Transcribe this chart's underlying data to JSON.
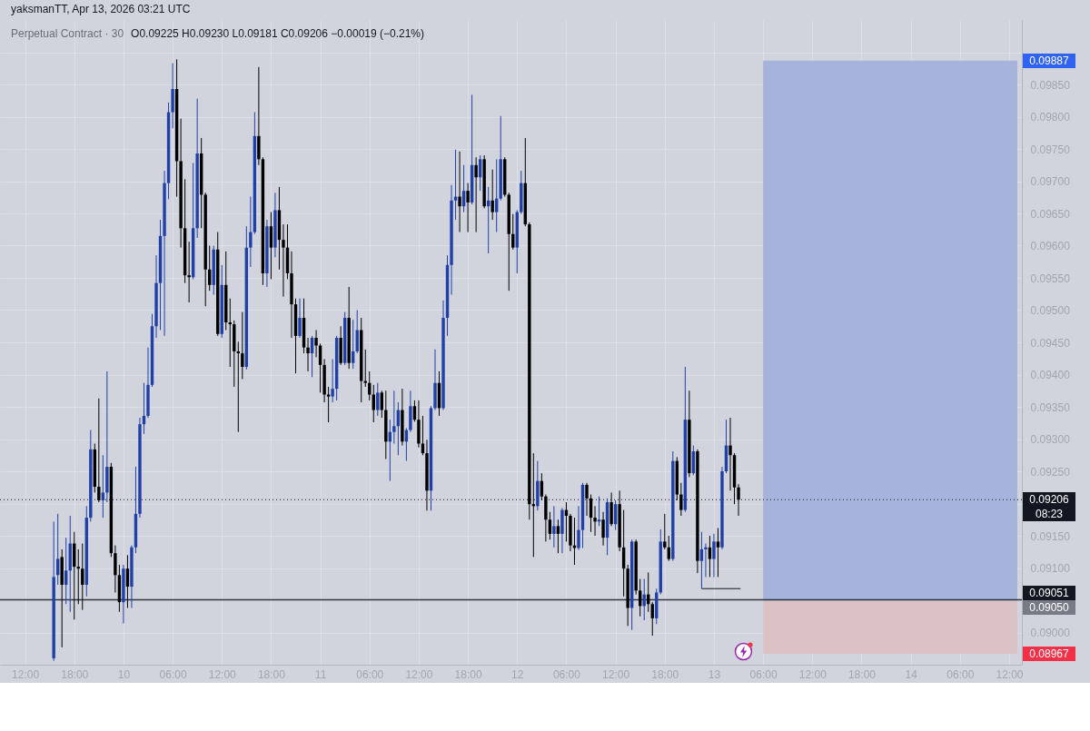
{
  "chart_data": {
    "type": "candlestick",
    "title": "Perpetual Contract · 30",
    "annotations": [
      "yaksmanTT, Apr 13, 2026 03:21 UTC",
      "O0.09225 H0.09230 L0.09181 C0.09206 −0.00019 (−0.21%)",
      "08:23"
    ],
    "x": [
      "2026-04-09T15:30",
      "2026-04-09T16:00",
      "2026-04-09T16:30",
      "2026-04-09T17:00",
      "2026-04-09T17:30",
      "2026-04-09T18:00",
      "2026-04-09T18:30",
      "2026-04-09T19:00",
      "2026-04-09T19:30",
      "2026-04-09T20:00",
      "2026-04-09T20:30",
      "2026-04-09T21:00",
      "2026-04-09T21:30",
      "2026-04-09T22:00",
      "2026-04-09T22:30",
      "2026-04-09T23:00",
      "2026-04-09T23:30",
      "2026-04-10T00:00",
      "2026-04-10T00:30",
      "2026-04-10T01:00",
      "2026-04-10T01:30",
      "2026-04-10T02:00",
      "2026-04-10T02:30",
      "2026-04-10T03:00",
      "2026-04-10T03:30",
      "2026-04-10T04:00",
      "2026-04-10T04:30",
      "2026-04-10T05:00",
      "2026-04-10T05:30",
      "2026-04-10T06:00",
      "2026-04-10T06:30",
      "2026-04-10T07:00",
      "2026-04-10T07:30",
      "2026-04-10T08:00",
      "2026-04-10T08:30",
      "2026-04-10T09:00",
      "2026-04-10T09:30",
      "2026-04-10T10:00",
      "2026-04-10T10:30",
      "2026-04-10T11:00",
      "2026-04-10T11:30",
      "2026-04-10T12:00",
      "2026-04-10T12:30",
      "2026-04-10T13:00",
      "2026-04-10T13:30",
      "2026-04-10T14:00",
      "2026-04-10T14:30",
      "2026-04-10T15:00",
      "2026-04-10T15:30",
      "2026-04-10T16:00",
      "2026-04-10T16:30",
      "2026-04-10T17:00",
      "2026-04-10T17:30",
      "2026-04-10T18:00",
      "2026-04-10T18:30",
      "2026-04-10T19:00",
      "2026-04-10T19:30",
      "2026-04-10T20:00",
      "2026-04-10T20:30",
      "2026-04-10T21:00",
      "2026-04-10T21:30",
      "2026-04-10T22:00",
      "2026-04-10T22:30",
      "2026-04-10T23:00",
      "2026-04-10T23:30",
      "2026-04-11T00:00",
      "2026-04-11T00:30",
      "2026-04-11T01:00",
      "2026-04-11T01:30",
      "2026-04-11T02:00",
      "2026-04-11T02:30",
      "2026-04-11T03:00",
      "2026-04-11T03:30",
      "2026-04-11T04:00",
      "2026-04-11T04:30",
      "2026-04-11T05:00",
      "2026-04-11T05:30",
      "2026-04-11T06:00",
      "2026-04-11T06:30",
      "2026-04-11T07:00",
      "2026-04-11T07:30",
      "2026-04-11T08:00",
      "2026-04-11T08:30",
      "2026-04-11T09:00",
      "2026-04-11T09:30",
      "2026-04-11T10:00",
      "2026-04-11T10:30",
      "2026-04-11T11:00",
      "2026-04-11T11:30",
      "2026-04-11T12:00",
      "2026-04-11T12:30",
      "2026-04-11T13:00",
      "2026-04-11T13:30",
      "2026-04-11T14:00",
      "2026-04-11T14:30",
      "2026-04-11T15:00",
      "2026-04-11T15:30",
      "2026-04-11T16:00",
      "2026-04-11T16:30",
      "2026-04-11T17:00",
      "2026-04-11T17:30",
      "2026-04-11T18:00",
      "2026-04-11T18:30",
      "2026-04-11T19:00",
      "2026-04-11T19:30",
      "2026-04-11T20:00",
      "2026-04-11T20:30",
      "2026-04-11T21:00",
      "2026-04-11T21:30",
      "2026-04-11T22:00",
      "2026-04-11T22:30",
      "2026-04-11T23:00",
      "2026-04-11T23:30",
      "2026-04-12T00:00",
      "2026-04-12T00:30",
      "2026-04-12T01:00",
      "2026-04-12T01:30",
      "2026-04-12T02:00",
      "2026-04-12T02:30",
      "2026-04-12T03:00",
      "2026-04-12T03:30",
      "2026-04-12T04:00",
      "2026-04-12T04:30",
      "2026-04-12T05:00",
      "2026-04-12T05:30",
      "2026-04-12T06:00",
      "2026-04-12T06:30",
      "2026-04-12T07:00",
      "2026-04-12T07:30",
      "2026-04-12T08:00",
      "2026-04-12T08:30",
      "2026-04-12T09:00",
      "2026-04-12T09:30",
      "2026-04-12T10:00",
      "2026-04-12T10:30",
      "2026-04-12T11:00",
      "2026-04-12T11:30",
      "2026-04-12T12:00",
      "2026-04-12T12:30",
      "2026-04-12T13:00",
      "2026-04-12T13:30",
      "2026-04-12T14:00",
      "2026-04-12T14:30",
      "2026-04-12T15:00",
      "2026-04-12T15:30",
      "2026-04-12T16:00",
      "2026-04-12T16:30",
      "2026-04-12T17:00",
      "2026-04-12T17:30",
      "2026-04-12T18:00",
      "2026-04-12T18:30",
      "2026-04-12T19:00",
      "2026-04-12T19:30",
      "2026-04-12T20:00",
      "2026-04-12T20:30",
      "2026-04-12T21:00",
      "2026-04-12T21:30",
      "2026-04-12T22:00",
      "2026-04-12T22:30",
      "2026-04-12T23:00",
      "2026-04-12T23:30",
      "2026-04-13T00:00",
      "2026-04-13T00:30",
      "2026-04-13T01:00",
      "2026-04-13T01:30",
      "2026-04-13T02:00",
      "2026-04-13T02:30",
      "2026-04-13T03:00"
    ],
    "ohlc": [
      [
        0.0896,
        0.09172,
        0.08956,
        0.09086
      ],
      [
        0.09089,
        0.09184,
        0.09074,
        0.09114
      ],
      [
        0.09117,
        0.09129,
        0.08977,
        0.09074
      ],
      [
        0.09074,
        0.09147,
        0.09044,
        0.09096
      ],
      [
        0.09096,
        0.09181,
        0.09032,
        0.09138
      ],
      [
        0.09138,
        0.09156,
        0.0902,
        0.09102
      ],
      [
        0.09102,
        0.09129,
        0.09044,
        0.09099
      ],
      [
        0.09099,
        0.09138,
        0.09035,
        0.09074
      ],
      [
        0.09074,
        0.09196,
        0.09056,
        0.09178
      ],
      [
        0.09178,
        0.09314,
        0.09172,
        0.09284
      ],
      [
        0.09284,
        0.09293,
        0.09217,
        0.09226
      ],
      [
        0.09226,
        0.09363,
        0.09202,
        0.09205
      ],
      [
        0.09205,
        0.09275,
        0.09178,
        0.09217
      ],
      [
        0.09217,
        0.09405,
        0.09202,
        0.09257
      ],
      [
        0.09257,
        0.09263,
        0.09117,
        0.09123
      ],
      [
        0.09123,
        0.09135,
        0.09062,
        0.09089
      ],
      [
        0.09089,
        0.09105,
        0.09032,
        0.09047
      ],
      [
        0.09047,
        0.09105,
        0.09014,
        0.09099
      ],
      [
        0.09099,
        0.0912,
        0.09038,
        0.09071
      ],
      [
        0.09071,
        0.09135,
        0.09038,
        0.09132
      ],
      [
        0.09132,
        0.09257,
        0.09123,
        0.09184
      ],
      [
        0.09184,
        0.09333,
        0.09178,
        0.09323
      ],
      [
        0.09323,
        0.09387,
        0.09308,
        0.09336
      ],
      [
        0.09336,
        0.09442,
        0.09333,
        0.09384
      ],
      [
        0.09384,
        0.09494,
        0.09381,
        0.09475
      ],
      [
        0.09475,
        0.09585,
        0.09457,
        0.09542
      ],
      [
        0.09542,
        0.0964,
        0.09469,
        0.09615
      ],
      [
        0.09615,
        0.09716,
        0.0946,
        0.09697
      ],
      [
        0.09697,
        0.09822,
        0.09672,
        0.09807
      ],
      [
        0.09807,
        0.09883,
        0.09782,
        0.09843
      ],
      [
        0.09843,
        0.09889,
        0.09676,
        0.09731
      ],
      [
        0.09731,
        0.09797,
        0.09597,
        0.09627
      ],
      [
        0.09627,
        0.09703,
        0.09542,
        0.09554
      ],
      [
        0.09554,
        0.09606,
        0.09512,
        0.09551
      ],
      [
        0.09551,
        0.09728,
        0.09548,
        0.09627
      ],
      [
        0.09627,
        0.09828,
        0.09612,
        0.09743
      ],
      [
        0.09743,
        0.09767,
        0.09627,
        0.09679
      ],
      [
        0.09679,
        0.09682,
        0.09506,
        0.09563
      ],
      [
        0.09563,
        0.096,
        0.0953,
        0.09539
      ],
      [
        0.09539,
        0.096,
        0.09524,
        0.09594
      ],
      [
        0.09594,
        0.09621,
        0.0946,
        0.09463
      ],
      [
        0.09463,
        0.0957,
        0.09457,
        0.09539
      ],
      [
        0.09539,
        0.09591,
        0.09469,
        0.09481
      ],
      [
        0.09481,
        0.09518,
        0.09412,
        0.09478
      ],
      [
        0.09478,
        0.09484,
        0.09381,
        0.09436
      ],
      [
        0.09436,
        0.09451,
        0.09311,
        0.09433
      ],
      [
        0.09433,
        0.09497,
        0.09393,
        0.09412
      ],
      [
        0.09412,
        0.0963,
        0.09408,
        0.09597
      ],
      [
        0.09597,
        0.09676,
        0.09567,
        0.09621
      ],
      [
        0.09621,
        0.09807,
        0.09618,
        0.0977
      ],
      [
        0.0977,
        0.09877,
        0.09725,
        0.09734
      ],
      [
        0.09734,
        0.09737,
        0.09539,
        0.09557
      ],
      [
        0.09557,
        0.0964,
        0.09536,
        0.0963
      ],
      [
        0.0963,
        0.09652,
        0.09548,
        0.09597
      ],
      [
        0.09597,
        0.09682,
        0.09582,
        0.09655
      ],
      [
        0.09655,
        0.09691,
        0.09563,
        0.09609
      ],
      [
        0.09609,
        0.09633,
        0.09521,
        0.09597
      ],
      [
        0.09597,
        0.09633,
        0.09548,
        0.09557
      ],
      [
        0.09557,
        0.09591,
        0.09457,
        0.09509
      ],
      [
        0.09509,
        0.09518,
        0.09402,
        0.0946
      ],
      [
        0.0946,
        0.09518,
        0.09457,
        0.09488
      ],
      [
        0.09488,
        0.09518,
        0.09433,
        0.09442
      ],
      [
        0.09442,
        0.09457,
        0.09405,
        0.09433
      ],
      [
        0.09433,
        0.0946,
        0.09396,
        0.09457
      ],
      [
        0.09457,
        0.09469,
        0.09427,
        0.09445
      ],
      [
        0.09445,
        0.09448,
        0.09372,
        0.09415
      ],
      [
        0.09415,
        0.09424,
        0.09357,
        0.09369
      ],
      [
        0.09369,
        0.09381,
        0.09326,
        0.09366
      ],
      [
        0.09366,
        0.09424,
        0.09357,
        0.09378
      ],
      [
        0.09378,
        0.0946,
        0.0936,
        0.09457
      ],
      [
        0.09457,
        0.09475,
        0.09415,
        0.09418
      ],
      [
        0.09418,
        0.09497,
        0.09415,
        0.09488
      ],
      [
        0.09488,
        0.09536,
        0.09409,
        0.09418
      ],
      [
        0.09418,
        0.09485,
        0.09409,
        0.09436
      ],
      [
        0.09436,
        0.095,
        0.09433,
        0.09469
      ],
      [
        0.09469,
        0.09488,
        0.09357,
        0.0939
      ],
      [
        0.0939,
        0.09439,
        0.09381,
        0.09387
      ],
      [
        0.09387,
        0.09405,
        0.0936,
        0.09369
      ],
      [
        0.09369,
        0.09384,
        0.09326,
        0.09345
      ],
      [
        0.09345,
        0.09387,
        0.09336,
        0.09372
      ],
      [
        0.09372,
        0.09375,
        0.09333,
        0.09345
      ],
      [
        0.09345,
        0.09375,
        0.09269,
        0.09296
      ],
      [
        0.09296,
        0.0933,
        0.09235,
        0.09311
      ],
      [
        0.09311,
        0.09375,
        0.09293,
        0.0932
      ],
      [
        0.0932,
        0.09357,
        0.09275,
        0.09345
      ],
      [
        0.09345,
        0.09378,
        0.0929,
        0.09296
      ],
      [
        0.09296,
        0.09317,
        0.09266,
        0.09314
      ],
      [
        0.09314,
        0.09375,
        0.09311,
        0.09351
      ],
      [
        0.09351,
        0.0936,
        0.09327,
        0.0933
      ],
      [
        0.0933,
        0.0936,
        0.09287,
        0.09293
      ],
      [
        0.09293,
        0.09336,
        0.09275,
        0.09278
      ],
      [
        0.09278,
        0.09299,
        0.09189,
        0.0922
      ],
      [
        0.0922,
        0.09351,
        0.09189,
        0.09348
      ],
      [
        0.09348,
        0.09439,
        0.09345,
        0.09387
      ],
      [
        0.09387,
        0.09405,
        0.09336,
        0.09348
      ],
      [
        0.09348,
        0.09515,
        0.09345,
        0.09488
      ],
      [
        0.09488,
        0.09585,
        0.0946,
        0.0957
      ],
      [
        0.0957,
        0.09694,
        0.09524,
        0.0967
      ],
      [
        0.0967,
        0.09749,
        0.0964,
        0.09676
      ],
      [
        0.09676,
        0.09746,
        0.09621,
        0.09661
      ],
      [
        0.09661,
        0.09725,
        0.09652,
        0.09685
      ],
      [
        0.09685,
        0.09697,
        0.09621,
        0.09667
      ],
      [
        0.09667,
        0.09834,
        0.09664,
        0.09725
      ],
      [
        0.09725,
        0.09737,
        0.09621,
        0.09706
      ],
      [
        0.09706,
        0.0974,
        0.09685,
        0.09734
      ],
      [
        0.09734,
        0.0974,
        0.09658,
        0.09661
      ],
      [
        0.09661,
        0.09691,
        0.09588,
        0.0967
      ],
      [
        0.0967,
        0.09718,
        0.0964,
        0.09652
      ],
      [
        0.09652,
        0.09734,
        0.09621,
        0.09673
      ],
      [
        0.09673,
        0.09801,
        0.0967,
        0.09734
      ],
      [
        0.09734,
        0.09737,
        0.09676,
        0.09679
      ],
      [
        0.09679,
        0.09682,
        0.0953,
        0.09618
      ],
      [
        0.09618,
        0.09649,
        0.09594,
        0.09597
      ],
      [
        0.09597,
        0.09655,
        0.09557,
        0.09652
      ],
      [
        0.09652,
        0.09716,
        0.09649,
        0.09697
      ],
      [
        0.09697,
        0.09767,
        0.0963,
        0.09633
      ],
      [
        0.09633,
        0.09636,
        0.09175,
        0.09199
      ],
      [
        0.09199,
        0.09278,
        0.09117,
        0.09196
      ],
      [
        0.09196,
        0.09266,
        0.09189,
        0.09235
      ],
      [
        0.09235,
        0.09247,
        0.09205,
        0.09211
      ],
      [
        0.09211,
        0.09214,
        0.09141,
        0.09175
      ],
      [
        0.09175,
        0.09187,
        0.09144,
        0.09153
      ],
      [
        0.09153,
        0.09196,
        0.09132,
        0.09165
      ],
      [
        0.09165,
        0.09175,
        0.09123,
        0.09153
      ],
      [
        0.09153,
        0.09193,
        0.09123,
        0.0919
      ],
      [
        0.0919,
        0.09202,
        0.09141,
        0.09181
      ],
      [
        0.09181,
        0.09184,
        0.09126,
        0.09135
      ],
      [
        0.09135,
        0.09178,
        0.09105,
        0.09131
      ],
      [
        0.09131,
        0.09196,
        0.09128,
        0.09159
      ],
      [
        0.09159,
        0.09232,
        0.09131,
        0.09229
      ],
      [
        0.09229,
        0.09232,
        0.09181,
        0.09208
      ],
      [
        0.09208,
        0.09214,
        0.09156,
        0.09178
      ],
      [
        0.09178,
        0.09196,
        0.0915,
        0.09172
      ],
      [
        0.09172,
        0.09211,
        0.09165,
        0.09175
      ],
      [
        0.09175,
        0.09187,
        0.09135,
        0.09147
      ],
      [
        0.09147,
        0.09208,
        0.0912,
        0.09202
      ],
      [
        0.09202,
        0.09217,
        0.09165,
        0.09168
      ],
      [
        0.09168,
        0.09205,
        0.09159,
        0.09199
      ],
      [
        0.09199,
        0.0922,
        0.09126,
        0.09132
      ],
      [
        0.09132,
        0.0919,
        0.09056,
        0.09099
      ],
      [
        0.09099,
        0.09105,
        0.0901,
        0.09038
      ],
      [
        0.09038,
        0.09144,
        0.09004,
        0.09141
      ],
      [
        0.09141,
        0.09144,
        0.09059,
        0.09065
      ],
      [
        0.09065,
        0.09083,
        0.09025,
        0.09041
      ],
      [
        0.09041,
        0.09083,
        0.09019,
        0.09059
      ],
      [
        0.09059,
        0.09093,
        0.09032,
        0.09044
      ],
      [
        0.09044,
        0.09047,
        0.08995,
        0.09022
      ],
      [
        0.09022,
        0.09068,
        0.09013,
        0.09062
      ],
      [
        0.09062,
        0.0916,
        0.09059,
        0.09141
      ],
      [
        0.09141,
        0.09184,
        0.09129,
        0.09132
      ],
      [
        0.09132,
        0.0915,
        0.09111,
        0.09114
      ],
      [
        0.09114,
        0.09281,
        0.09111,
        0.09266
      ],
      [
        0.09266,
        0.09272,
        0.09205,
        0.09214
      ],
      [
        0.09214,
        0.09232,
        0.09181,
        0.0919
      ],
      [
        0.0919,
        0.09412,
        0.09187,
        0.0933
      ],
      [
        0.0933,
        0.09375,
        0.09241,
        0.09247
      ],
      [
        0.09247,
        0.0929,
        0.09244,
        0.09281
      ],
      [
        0.09281,
        0.09284,
        0.09092,
        0.09111
      ],
      [
        0.09111,
        0.09156,
        0.09068,
        0.09129
      ],
      [
        0.09129,
        0.09138,
        0.09086,
        0.09132
      ],
      [
        0.09132,
        0.0915,
        0.09086,
        0.09114
      ],
      [
        0.09114,
        0.09153,
        0.09086,
        0.09141
      ],
      [
        0.09141,
        0.09162,
        0.09086,
        0.09132
      ],
      [
        0.09132,
        0.09257,
        0.09129,
        0.0925
      ],
      [
        0.0925,
        0.0933,
        0.09247,
        0.0929
      ],
      [
        0.0929,
        0.09333,
        0.0922,
        0.09275
      ],
      [
        0.09275,
        0.09278,
        0.09199,
        0.09225
      ],
      [
        0.09225,
        0.0923,
        0.09181,
        0.09206
      ]
    ],
    "colors": [
      "#2040a8",
      "#2040a8",
      "#000000",
      "#2040a8",
      "#2040a8",
      "#000000",
      "#000000",
      "#000000",
      "#2040a8",
      "#2040a8",
      "#000000",
      "#000000",
      "#2040a8",
      "#2040a8",
      "#000000",
      "#000000",
      "#000000",
      "#2040a8",
      "#000000",
      "#2040a8",
      "#2040a8",
      "#2040a8",
      "#2040a8",
      "#2040a8",
      "#2040a8",
      "#2040a8",
      "#2040a8",
      "#2040a8",
      "#2040a8",
      "#2040a8",
      "#000000",
      "#000000",
      "#000000",
      "#000000",
      "#2040a8",
      "#2040a8",
      "#000000",
      "#000000",
      "#000000",
      "#2040a8",
      "#000000",
      "#2040a8",
      "#000000",
      "#000000",
      "#000000",
      "#000000",
      "#000000",
      "#2040a8",
      "#2040a8",
      "#2040a8",
      "#000000",
      "#000000",
      "#2040a8",
      "#000000",
      "#2040a8",
      "#000000",
      "#000000",
      "#000000",
      "#000000",
      "#000000",
      "#2040a8",
      "#000000",
      "#000000",
      "#2040a8",
      "#000000",
      "#000000",
      "#000000",
      "#000000",
      "#2040a8",
      "#2040a8",
      "#000000",
      "#2040a8",
      "#000000",
      "#2040a8",
      "#2040a8",
      "#000000",
      "#000000",
      "#000000",
      "#000000",
      "#2040a8",
      "#000000",
      "#000000",
      "#2040a8",
      "#2040a8",
      "#2040a8",
      "#000000",
      "#2040a8",
      "#2040a8",
      "#000000",
      "#000000",
      "#000000",
      "#000000",
      "#2040a8",
      "#2040a8",
      "#000000",
      "#2040a8",
      "#2040a8",
      "#2040a8",
      "#2040a8",
      "#000000",
      "#2040a8",
      "#000000",
      "#2040a8",
      "#000000",
      "#2040a8",
      "#000000",
      "#2040a8",
      "#000000",
      "#2040a8",
      "#2040a8",
      "#000000",
      "#000000",
      "#000000",
      "#2040a8",
      "#2040a8",
      "#000000",
      "#000000",
      "#000000",
      "#2040a8",
      "#000000",
      "#000000",
      "#000000",
      "#2040a8",
      "#000000",
      "#2040a8",
      "#000000",
      "#000000",
      "#000000",
      "#2040a8",
      "#2040a8",
      "#000000",
      "#000000",
      "#000000",
      "#2040a8",
      "#000000",
      "#2040a8",
      "#000000",
      "#2040a8",
      "#000000",
      "#000000",
      "#000000",
      "#2040a8",
      "#000000",
      "#000000",
      "#2040a8",
      "#000000",
      "#000000",
      "#2040a8",
      "#2040a8",
      "#000000",
      "#000000",
      "#2040a8",
      "#000000",
      "#000000",
      "#2040a8",
      "#000000",
      "#2040a8",
      "#000000",
      "#2040a8",
      "#2040a8",
      "#000000",
      "#2040a8",
      "#000000",
      "#2040a8",
      "#2040a8",
      "#000000",
      "#000000",
      "#000000"
    ],
    "series": [
      {
        "type": "line",
        "x": [
          "2026-04-12T22:30",
          "2026-04-13T03:15"
        ],
        "values": [
          0.09068,
          0.09068
        ],
        "color": "#131722"
      }
    ],
    "xlim": [
      "2026-04-09T09:30",
      "2026-04-14T13:00"
    ],
    "xticks": [
      {
        "value": "2026-04-09T12:00",
        "label": "12:00"
      },
      {
        "value": "2026-04-09T18:00",
        "label": "18:00"
      },
      {
        "value": "2026-04-10T00:00",
        "label": "10"
      },
      {
        "value": "2026-04-10T06:00",
        "label": "06:00"
      },
      {
        "value": "2026-04-10T12:00",
        "label": "12:00"
      },
      {
        "value": "2026-04-10T18:00",
        "label": "18:00"
      },
      {
        "value": "2026-04-11T00:00",
        "label": "11"
      },
      {
        "value": "2026-04-11T06:00",
        "label": "06:00"
      },
      {
        "value": "2026-04-11T12:00",
        "label": "12:00"
      },
      {
        "value": "2026-04-11T18:00",
        "label": "18:00"
      },
      {
        "value": "2026-04-12T00:00",
        "label": "12"
      },
      {
        "value": "2026-04-12T06:00",
        "label": "06:00"
      },
      {
        "value": "2026-04-12T12:00",
        "label": "12:00"
      },
      {
        "value": "2026-04-12T18:00",
        "label": "18:00"
      },
      {
        "value": "2026-04-13T00:00",
        "label": "13"
      },
      {
        "value": "2026-04-13T06:00",
        "label": "06:00"
      },
      {
        "value": "2026-04-13T12:00",
        "label": "12:00"
      },
      {
        "value": "2026-04-13T18:00",
        "label": "18:00"
      },
      {
        "value": "2026-04-14T00:00",
        "label": "14"
      },
      {
        "value": "2026-04-14T06:00",
        "label": "06:00"
      },
      {
        "value": "2026-04-14T12:00",
        "label": "12:00"
      }
    ],
    "ylim": [
      0.0895,
      0.0995
    ],
    "yticks": [
      {
        "value": 0.09,
        "label": "0.09000"
      },
      {
        "value": 0.0905,
        "label": null
      },
      {
        "value": 0.091,
        "label": "0.09100"
      },
      {
        "value": 0.0915,
        "label": "0.09150"
      },
      {
        "value": 0.092,
        "label": null
      },
      {
        "value": 0.0925,
        "label": "0.09250"
      },
      {
        "value": 0.093,
        "label": "0.09300"
      },
      {
        "value": 0.0935,
        "label": "0.09350"
      },
      {
        "value": 0.094,
        "label": "0.09400"
      },
      {
        "value": 0.0945,
        "label": "0.09450"
      },
      {
        "value": 0.095,
        "label": "0.09500"
      },
      {
        "value": 0.0955,
        "label": "0.09550"
      },
      {
        "value": 0.096,
        "label": "0.09600"
      },
      {
        "value": 0.0965,
        "label": "0.09650"
      },
      {
        "value": 0.097,
        "label": "0.09700"
      },
      {
        "value": 0.0975,
        "label": "0.09750"
      },
      {
        "value": 0.098,
        "label": "0.09800"
      },
      {
        "value": 0.0985,
        "label": "0.09850"
      },
      {
        "value": 0.099,
        "label": null
      }
    ],
    "grid": true,
    "ref_lines": [
      {
        "axis": "y",
        "value": 0.09206,
        "label": "0.09206",
        "line_style": "dotted",
        "color": "#131722"
      },
      {
        "axis": "y",
        "value": 0.0905,
        "label": "0.09050",
        "color": "#787b86"
      },
      {
        "axis": "y",
        "value": 0.09051,
        "label": "0.09051",
        "color": "#131722"
      }
    ],
    "bands": [
      {
        "axis": "y",
        "from": 0.0905,
        "to": 0.09887,
        "label": "0.09887",
        "color": "#a6b4dc"
      },
      {
        "axis": "y",
        "from": 0.0905,
        "to": 0.08967,
        "label": "0.08967",
        "color": "#dbc2c5"
      }
    ]
  }
}
